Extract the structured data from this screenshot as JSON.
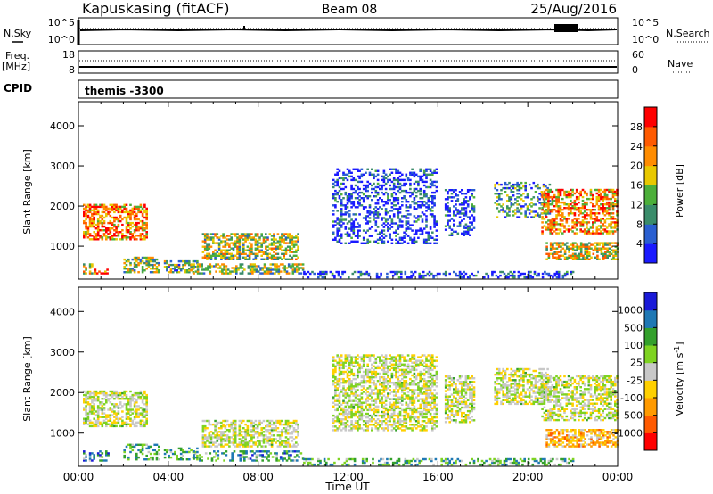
{
  "header": {
    "site": "Kapuskasing (fitACF)",
    "beam": "Beam 08",
    "date": "25/Aug/2016"
  },
  "noise_panel": {
    "left_label": "N.Sky",
    "right_label": "N.Search",
    "left_ticks": [
      "10^5",
      "10^0"
    ],
    "right_ticks": [
      "10^5",
      "10^0"
    ]
  },
  "freq_panel": {
    "left_label": "Freq.",
    "left_unit": "[MHz]",
    "right_label": "Nave",
    "left_ticks": [
      "18",
      "8"
    ],
    "right_ticks": [
      "60",
      "0"
    ]
  },
  "cpid_panel": {
    "label": "CPID",
    "text": "themis -3300"
  },
  "chart_data": [
    {
      "type": "heatmap",
      "id": "power",
      "ylabel": "Slant Range [km]",
      "y_ticks": [
        "1000",
        "2000",
        "3000",
        "4000"
      ],
      "ylim": [
        180,
        4600
      ],
      "xlim": [
        0,
        24
      ],
      "colorbar": {
        "label": "Power [dB]",
        "ticks": [
          "4",
          "8",
          "12",
          "16",
          "20",
          "24",
          "28"
        ],
        "colors": [
          "#1a1aff",
          "#2a5fd0",
          "#3a8c6a",
          "#4caf3a",
          "#e8c800",
          "#ff8c00",
          "#ff5a00",
          "#ff0000"
        ]
      },
      "regions": [
        {
          "t": [
            0.2,
            3.0
          ],
          "r": [
            1150,
            2050
          ],
          "level": 0.75
        },
        {
          "t": [
            0.2,
            0.6
          ],
          "r": [
            300,
            560
          ],
          "level": 0.55
        },
        {
          "t": [
            0.7,
            1.3
          ],
          "r": [
            300,
            420
          ],
          "level": 0.85
        },
        {
          "t": [
            2.0,
            3.6
          ],
          "r": [
            330,
            700
          ],
          "level": 0.45
        },
        {
          "t": [
            3.8,
            5.3
          ],
          "r": [
            330,
            620
          ],
          "level": 0.4
        },
        {
          "t": [
            5.5,
            9.8
          ],
          "r": [
            650,
            1300
          ],
          "level": 0.5
        },
        {
          "t": [
            5.0,
            10.0
          ],
          "r": [
            300,
            560
          ],
          "level": 0.45
        },
        {
          "t": [
            10.0,
            22.0
          ],
          "r": [
            200,
            380
          ],
          "level": 0.1
        },
        {
          "t": [
            11.3,
            15.9
          ],
          "r": [
            1050,
            2900
          ],
          "level": 0.1
        },
        {
          "t": [
            16.3,
            17.6
          ],
          "r": [
            1250,
            2400
          ],
          "level": 0.1
        },
        {
          "t": [
            18.5,
            21.0
          ],
          "r": [
            1700,
            2600
          ],
          "level": 0.3
        },
        {
          "t": [
            20.6,
            24.0
          ],
          "r": [
            1300,
            2400
          ],
          "level": 0.7
        },
        {
          "t": [
            20.8,
            24.0
          ],
          "r": [
            650,
            1100
          ],
          "level": 0.55
        }
      ]
    },
    {
      "type": "heatmap",
      "id": "velocity",
      "ylabel": "Slant Range [km]",
      "xlabel": "Time UT",
      "x_ticks": [
        "00:00",
        "04:00",
        "08:00",
        "12:00",
        "16:00",
        "20:00",
        "00:00"
      ],
      "y_ticks": [
        "1000",
        "2000",
        "3000",
        "4000"
      ],
      "ylim": [
        180,
        4600
      ],
      "xlim": [
        0,
        24
      ],
      "colorbar": {
        "label": "Velocity",
        "unit": "[m s",
        "unit_exp": "-1",
        "unit_end": "]",
        "ticks": [
          "1000",
          "500",
          "100",
          "25",
          "-25",
          "-100",
          "-500",
          "-1000"
        ],
        "colors": [
          "#1a1ad8",
          "#1f78b4",
          "#33a02c",
          "#7ed321",
          "#c8c8c8",
          "#ffd000",
          "#ff9a00",
          "#ff5a00",
          "#ff0000"
        ]
      },
      "regions": [
        {
          "t": [
            0.2,
            3.0
          ],
          "r": [
            1150,
            2050
          ],
          "level": 0.5
        },
        {
          "t": [
            0.2,
            1.3
          ],
          "r": [
            300,
            560
          ],
          "level": 0.2
        },
        {
          "t": [
            2.0,
            3.6
          ],
          "r": [
            330,
            700
          ],
          "level": 0.3
        },
        {
          "t": [
            3.8,
            5.3
          ],
          "r": [
            330,
            620
          ],
          "level": 0.3
        },
        {
          "t": [
            5.5,
            9.8
          ],
          "r": [
            650,
            1300
          ],
          "level": 0.5
        },
        {
          "t": [
            5.0,
            10.0
          ],
          "r": [
            300,
            560
          ],
          "level": 0.25
        },
        {
          "t": [
            10.0,
            22.0
          ],
          "r": [
            200,
            380
          ],
          "level": 0.3
        },
        {
          "t": [
            11.3,
            15.9
          ],
          "r": [
            1050,
            2900
          ],
          "level": 0.5
        },
        {
          "t": [
            16.3,
            17.6
          ],
          "r": [
            1250,
            2400
          ],
          "level": 0.5
        },
        {
          "t": [
            18.5,
            21.0
          ],
          "r": [
            1700,
            2600
          ],
          "level": 0.5
        },
        {
          "t": [
            20.6,
            24.0
          ],
          "r": [
            1300,
            2400
          ],
          "level": 0.5
        },
        {
          "t": [
            20.8,
            24.0
          ],
          "r": [
            650,
            1100
          ],
          "level": 0.7
        }
      ]
    }
  ]
}
